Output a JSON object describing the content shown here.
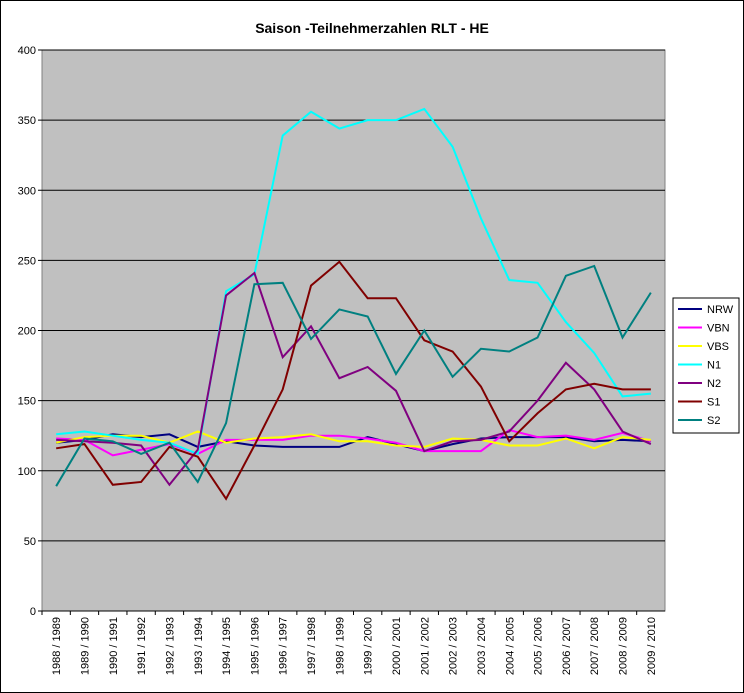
{
  "chart_data": {
    "type": "line",
    "title": "Saison -Teilnehmerzahlen RLT - HE",
    "categories": [
      "1988 / 1989",
      "1989 / 1990",
      "1990 / 1991",
      "1991 / 1992",
      "1992 / 1993",
      "1993 / 1994",
      "1994 / 1995",
      "1995 / 1996",
      "1996 / 1997",
      "1997 / 1998",
      "1998 / 1999",
      "1999 / 2000",
      "2000 / 2001",
      "2001 / 2002",
      "2002 / 2003",
      "2003 / 2004",
      "2004 / 2005",
      "2005 / 2006",
      "2006 / 2007",
      "2007 / 2008",
      "2008 / 2009",
      "2009 / 2010"
    ],
    "ylim": [
      0,
      400
    ],
    "yticks": [
      0,
      50,
      100,
      150,
      200,
      250,
      300,
      350,
      400
    ],
    "grid": true,
    "legend": "right",
    "series": [
      {
        "name": "NRW",
        "color": "#000080",
        "values": [
          120,
          122,
          126,
          124,
          126,
          117,
          121,
          118,
          117,
          117,
          117,
          124,
          119,
          114,
          119,
          123,
          124,
          124,
          124,
          121,
          122,
          121
        ]
      },
      {
        "name": "VBN",
        "color": "#ff00ff",
        "values": [
          123,
          122,
          111,
          115,
          119,
          112,
          122,
          122,
          122,
          125,
          125,
          123,
          120,
          114,
          114,
          114,
          129,
          124,
          125,
          122,
          127,
          121
        ]
      },
      {
        "name": "VBS",
        "color": "#ffff00",
        "values": [
          120,
          124,
          125,
          125,
          120,
          128,
          120,
          123,
          124,
          126,
          121,
          121,
          118,
          117,
          123,
          122,
          118,
          118,
          123,
          116,
          124,
          122
        ]
      },
      {
        "name": "N1",
        "color": "#00ffff",
        "values": [
          126,
          128,
          125,
          122,
          120,
          112,
          228,
          240,
          339,
          356,
          344,
          350,
          350,
          358,
          331,
          280,
          236,
          234,
          206,
          184,
          153,
          155
        ]
      },
      {
        "name": "N2",
        "color": "#800080",
        "values": [
          122,
          121,
          120,
          118,
          90,
          115,
          225,
          241,
          181,
          203,
          166,
          174,
          157,
          114,
          121,
          122,
          128,
          150,
          177,
          158,
          128,
          119
        ]
      },
      {
        "name": "S1",
        "color": "#800000",
        "values": [
          116,
          119,
          90,
          92,
          117,
          110,
          80,
          118,
          158,
          232,
          249,
          223,
          223,
          193,
          185,
          160,
          121,
          141,
          158,
          162,
          158,
          158
        ]
      },
      {
        "name": "S2",
        "color": "#008080",
        "values": [
          89,
          123,
          121,
          112,
          120,
          92,
          134,
          233,
          234,
          194,
          215,
          210,
          169,
          200,
          167,
          187,
          185,
          195,
          239,
          246,
          195,
          227
        ]
      }
    ]
  }
}
